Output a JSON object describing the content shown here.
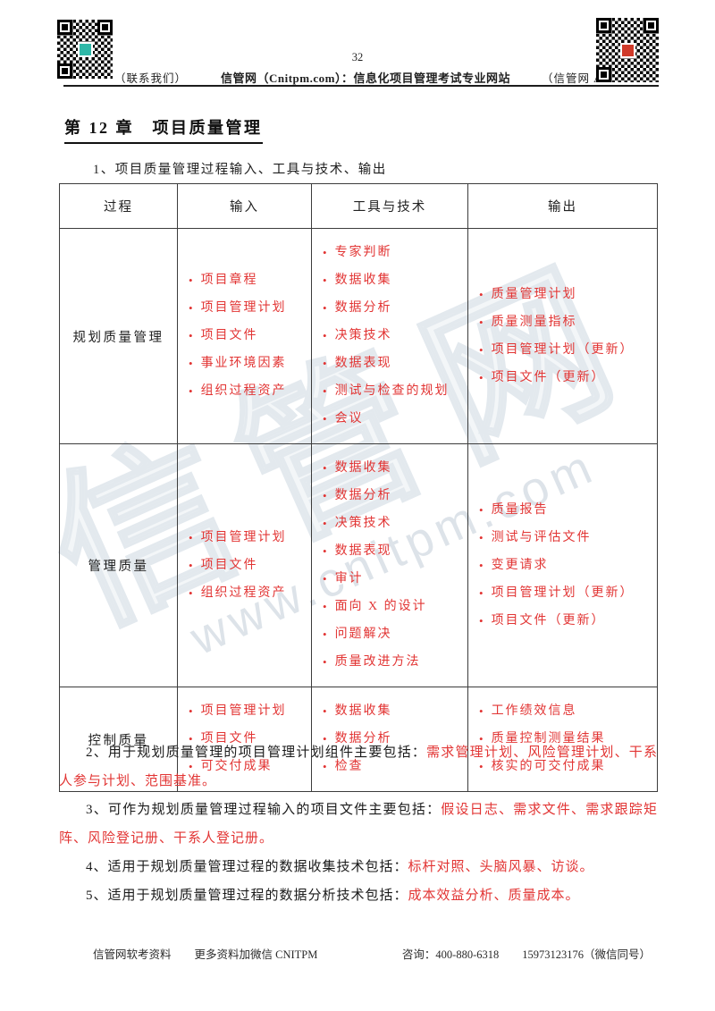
{
  "header": {
    "page_number": "32",
    "contact_caption": "（联系我们）",
    "site_line": "信管网（Cnitpm.com）：信息化项目管理考试专业网站",
    "app_caption": "（信管网 AP"
  },
  "title": "第 12 章　项目质量管理",
  "intro": "1、项目质量管理过程输入、工具与技术、输出",
  "table": {
    "headers": [
      "过程",
      "输入",
      "工具与技术",
      "输出"
    ],
    "rows": [
      {
        "process": "规划质量管理",
        "inputs": [
          "项目章程",
          "项目管理计划",
          "项目文件",
          "事业环境因素",
          "组织过程资产"
        ],
        "tools": [
          "专家判断",
          "数据收集",
          "数据分析",
          "决策技术",
          "数据表现",
          "测试与检查的规划",
          "会议"
        ],
        "outputs": [
          "质量管理计划",
          "质量测量指标",
          "项目管理计划（更新）",
          "项目文件（更新）"
        ]
      },
      {
        "process": "管理质量",
        "inputs": [
          "项目管理计划",
          "项目文件",
          "组织过程资产"
        ],
        "tools": [
          "数据收集",
          "数据分析",
          "决策技术",
          "数据表现",
          "审计",
          "面向 X 的设计",
          "问题解决",
          "质量改进方法"
        ],
        "outputs": [
          "质量报告",
          "测试与评估文件",
          "变更请求",
          "项目管理计划（更新）",
          "项目文件（更新）"
        ]
      },
      {
        "process": "控制质量",
        "inputs": [
          "项目管理计划",
          "项目文件",
          "可交付成果"
        ],
        "tools": [
          "数据收集",
          "数据分析",
          "检查"
        ],
        "outputs": [
          "工作绩效信息",
          "质量控制测量结果",
          "核实的可交付成果"
        ]
      }
    ]
  },
  "paragraphs": [
    {
      "black": "2、用于规划质量管理的项目管理计划组件主要包括：",
      "red": "需求管理计划、风险管理计划、干系人参与计划、范围基准。"
    },
    {
      "black": "3、可作为规划质量管理过程输入的项目文件主要包括：",
      "red": "假设日志、需求文件、需求跟踪矩阵、风险登记册、干系人登记册。"
    },
    {
      "black": "4、适用于规划质量管理过程的数据收集技术包括：",
      "red": "标杆对照、头脑风暴、访谈。"
    },
    {
      "black": "5、适用于规划质量管理过程的数据分析技术包括：",
      "red": "成本效益分析、质量成本。"
    }
  ],
  "watermark": {
    "text": "信管网",
    "url": "www.cnitpm.com"
  },
  "footer": {
    "items": [
      "信管网软考资料",
      "更多资料加微信 CNITPM",
      "咨询：400-880-6318",
      "15973123176（微信同号）"
    ]
  },
  "colors": {
    "red": "#e23534",
    "watermark_outline": "#e3e9ee",
    "border": "#3c3c3c"
  }
}
